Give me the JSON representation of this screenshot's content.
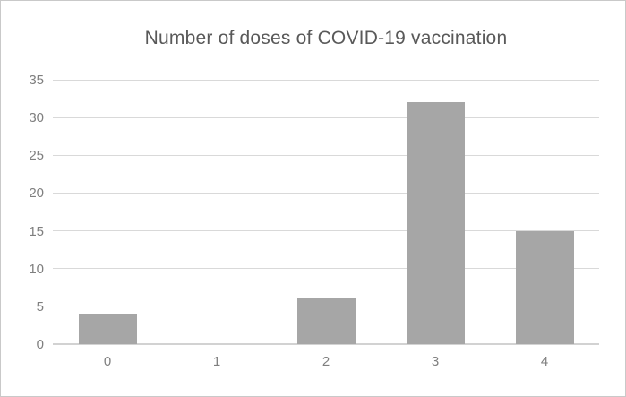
{
  "chart_data": {
    "type": "bar",
    "title": "Number of doses of COVID-19 vaccination",
    "categories": [
      "0",
      "1",
      "2",
      "3",
      "4"
    ],
    "values": [
      4,
      0,
      6,
      32,
      15
    ],
    "xlabel": "",
    "ylabel": "",
    "ylim": [
      0,
      35
    ],
    "ytick_step": 5,
    "ytick_labels": [
      "0",
      "5",
      "10",
      "15",
      "20",
      "25",
      "30",
      "35"
    ],
    "grid": "horizontal",
    "legend": "none",
    "colors": {
      "bar_fill": "#a6a6a6",
      "gridline": "#d9d9d9",
      "axis_line": "#d2d2d2",
      "title_text": "#595959",
      "tick_text": "#7f7f7f",
      "figure_border": "#c9c9c9",
      "background": "#ffffff"
    }
  }
}
